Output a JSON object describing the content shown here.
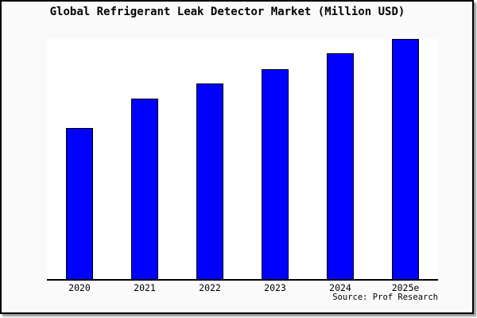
{
  "figure": {
    "title": "Global Refrigerant Leak Detector Market (Million USD)",
    "source_note": "Source: Prof Research",
    "colors": {
      "bar_fill": "#0000fe",
      "bar_border": "#000000",
      "plot_background": "#ffffff",
      "figure_background": "#fafafa",
      "frame_border": "#000000",
      "axis_line": "#000000",
      "text": "#000000"
    }
  },
  "chart_data": {
    "type": "bar",
    "title": "Global Refrigerant Leak Detector Market (Million USD)",
    "categories": [
      "2020",
      "2021",
      "2022",
      "2023",
      "2024",
      "2025e"
    ],
    "values": [
      63,
      75,
      81.5,
      87.5,
      94,
      100
    ],
    "units": "relative height (no numeric y-axis shown; 2025e bar = 100)",
    "xlabel": "",
    "ylabel": "",
    "ylim": [
      0,
      100
    ],
    "grid": false,
    "legend": false,
    "annotations": [
      "Source: Prof Research"
    ]
  }
}
